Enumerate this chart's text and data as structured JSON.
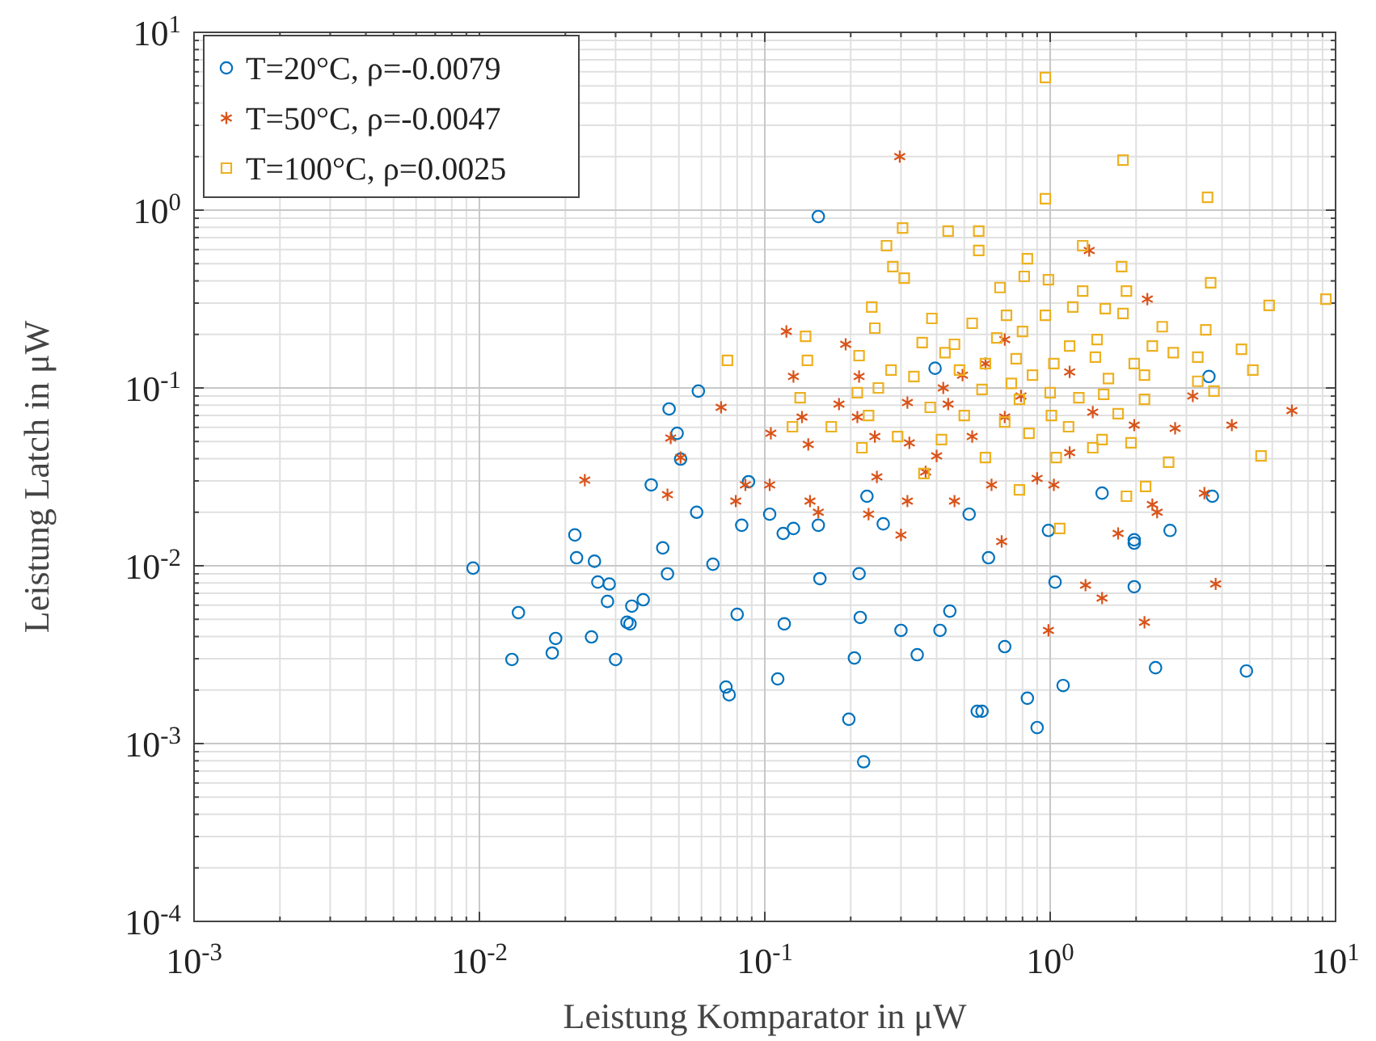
{
  "chart_data": {
    "type": "scatter",
    "xlabel": "Leistung Komparator in μW",
    "ylabel": "Leistung Latch in μW",
    "log": "xy",
    "grid": true,
    "legend": "top left",
    "xlim": [
      0.001,
      10
    ],
    "ylim": [
      0.0001,
      10
    ],
    "xticks": [
      {
        "value": 0.001,
        "label": "10$^{-3}$"
      },
      {
        "value": 0.01,
        "label": "10$^{-2}$"
      },
      {
        "value": 0.1,
        "label": "10$^{-1}$"
      },
      {
        "value": 1,
        "label": "10$^{0}$"
      },
      {
        "value": 10,
        "label": "10$^{1}$"
      }
    ],
    "yticks": [
      {
        "value": 0.0001,
        "label": "10$^{-4}$"
      },
      {
        "value": 0.001,
        "label": "10$^{-3}$"
      },
      {
        "value": 0.01,
        "label": "10$^{-2}$"
      },
      {
        "value": 0.1,
        "label": "10$^{-1}$"
      },
      {
        "value": 1,
        "label": "10$^{0}$"
      },
      {
        "value": 10,
        "label": "10$^{1}$"
      }
    ],
    "series": [
      {
        "name": "T=20°C, ρ=-0.0079",
        "color": "#0072bd",
        "marker": "circle",
        "x": [
          0.0095,
          0.0137,
          0.013,
          0.0185,
          0.0216,
          0.0219,
          0.018,
          0.0247,
          0.026,
          0.0253,
          0.0281,
          0.0329,
          0.03,
          0.0337,
          0.0375,
          0.0439,
          0.04,
          0.0456,
          0.0507,
          0.0577,
          0.0731,
          0.075,
          0.08,
          0.104,
          0.111,
          0.117,
          0.126,
          0.156,
          0.197,
          0.206,
          0.216,
          0.228,
          0.26,
          0.3,
          0.411,
          0.445,
          0.608,
          0.52,
          0.693,
          0.832,
          1.04,
          0.986,
          1.11,
          1.97,
          1.97,
          2.34,
          3.7,
          4.87,
          2.63,
          3.6,
          0.154,
          0.395,
          0.0462,
          0.0493,
          0.0585,
          0.0877,
          0.116,
          0.214,
          0.342,
          1.52,
          0.9,
          0.577,
          0.555,
          0.222,
          1.97,
          0.154,
          0.083,
          0.0285,
          0.0342,
          0.0658
        ],
        "values": [
          0.0097,
          0.00545,
          0.00297,
          0.0039,
          0.0149,
          0.0111,
          0.00323,
          0.00398,
          0.0081,
          0.0106,
          0.0063,
          0.00481,
          0.00297,
          0.00471,
          0.00644,
          0.0126,
          0.0285,
          0.00901,
          0.0398,
          0.02,
          0.00208,
          0.00188,
          0.00533,
          0.0195,
          0.00231,
          0.00471,
          0.0162,
          0.00846,
          0.00137,
          0.00303,
          0.00512,
          0.0246,
          0.0172,
          0.00433,
          0.00433,
          0.00556,
          0.0111,
          0.0195,
          0.00351,
          0.0018,
          0.0081,
          0.0158,
          0.00212,
          0.00762,
          0.014,
          0.00267,
          0.0246,
          0.00256,
          0.0158,
          0.116,
          0.92,
          0.129,
          0.0762,
          0.0556,
          0.096,
          0.0297,
          0.0152,
          0.00903,
          0.00316,
          0.0256,
          0.00123,
          0.00152,
          0.00152,
          0.00079,
          0.0134,
          0.0169,
          0.0169,
          0.0079,
          0.00593,
          0.0102
        ]
      },
      {
        "name": "T=50°C, ρ=-0.0047",
        "color": "#d95319",
        "marker": "cross",
        "x": [
          0.0234,
          0.0456,
          0.0468,
          0.0507,
          0.0703,
          0.0791,
          0.0855,
          0.105,
          0.119,
          0.126,
          0.135,
          0.142,
          0.154,
          0.182,
          0.192,
          0.211,
          0.214,
          0.247,
          0.297,
          0.316,
          0.321,
          0.366,
          0.422,
          0.493,
          0.593,
          0.693,
          0.9,
          1.17,
          1.37,
          1.41,
          1.97,
          2.19,
          2.28,
          2.74,
          3.16,
          3.8,
          4.33,
          7.03,
          3.47,
          2.37,
          1.33,
          0.986,
          1.52,
          2.14,
          0.462,
          0.3,
          0.231,
          0.676,
          0.4,
          0.533,
          0.79,
          1.03,
          1.73,
          0.144,
          0.316,
          0.693,
          0.623,
          0.439,
          1.17,
          0.243,
          0.104
        ],
        "values": [
          0.0303,
          0.0251,
          0.0523,
          0.0406,
          0.0778,
          0.0231,
          0.0285,
          0.0556,
          0.208,
          0.116,
          0.0686,
          0.0481,
          0.02,
          0.0811,
          0.176,
          0.0686,
          0.116,
          0.0316,
          2.0,
          0.0828,
          0.0491,
          0.0337,
          0.1,
          0.118,
          0.137,
          0.0686,
          0.031,
          0.0433,
          0.593,
          0.0731,
          0.0618,
          0.316,
          0.0221,
          0.0593,
          0.0901,
          0.0079,
          0.0618,
          0.0746,
          0.0256,
          0.02,
          0.00778,
          0.00433,
          0.00658,
          0.00481,
          0.0231,
          0.0149,
          0.0195,
          0.0137,
          0.0415,
          0.0533,
          0.0901,
          0.0285,
          0.0152,
          0.0231,
          0.0231,
          0.187,
          0.0285,
          0.0811,
          0.123,
          0.0533,
          0.0285
        ]
      },
      {
        "name": "T=100°C, ρ=0.0025",
        "color": "#edb120",
        "marker": "square",
        "x": [
          0.962,
          1.8,
          0.962,
          3.56,
          0.304,
          0.439,
          0.562,
          0.562,
          0.267,
          0.832,
          1.3,
          1.78,
          0.281,
          0.811,
          0.986,
          0.308,
          0.667,
          1.3,
          1.85,
          3.65,
          9.25,
          5.85,
          0.237,
          1.2,
          1.56,
          0.385,
          0.703,
          0.962,
          1.8,
          2.47,
          3.51,
          0.139,
          0.243,
          0.533,
          0.65,
          0.8,
          0.356,
          0.462,
          1.17,
          1.46,
          2.28,
          2.7,
          4.68,
          0.074,
          0.141,
          0.214,
          0.428,
          0.593,
          0.76,
          1.03,
          1.44,
          1.97,
          3.29,
          5.13,
          0.277,
          0.333,
          0.481,
          0.867,
          1.6,
          2.14,
          3.29,
          0.133,
          0.211,
          0.25,
          0.577,
          0.731,
          1.0,
          1.54,
          3.75,
          0.38,
          0.78,
          1.26,
          2.14,
          0.125,
          0.171,
          0.231,
          0.292,
          0.5,
          0.693,
          1.01,
          1.73,
          0.416,
          0.843,
          1.16,
          1.52,
          1.92,
          0.219,
          1.41,
          2.6,
          5.48,
          0.361,
          0.593,
          0.78,
          1.05,
          1.85,
          2.16,
          1.08
        ],
        "values": [
          5.57,
          1.91,
          1.16,
          1.18,
          0.794,
          0.762,
          0.762,
          0.593,
          0.631,
          0.533,
          0.631,
          0.481,
          0.481,
          0.424,
          0.406,
          0.415,
          0.367,
          0.351,
          0.351,
          0.39,
          0.316,
          0.291,
          0.285,
          0.285,
          0.279,
          0.246,
          0.256,
          0.256,
          0.262,
          0.221,
          0.212,
          0.195,
          0.217,
          0.231,
          0.191,
          0.208,
          0.18,
          0.176,
          0.172,
          0.187,
          0.172,
          0.158,
          0.165,
          0.143,
          0.143,
          0.152,
          0.158,
          0.137,
          0.146,
          0.137,
          0.149,
          0.137,
          0.149,
          0.126,
          0.126,
          0.116,
          0.126,
          0.118,
          0.113,
          0.118,
          0.109,
          0.0881,
          0.094,
          0.1,
          0.098,
          0.106,
          0.094,
          0.092,
          0.096,
          0.0778,
          0.0863,
          0.0881,
          0.0863,
          0.0605,
          0.0605,
          0.07,
          0.0533,
          0.07,
          0.0644,
          0.07,
          0.0716,
          0.0512,
          0.0556,
          0.0605,
          0.0512,
          0.0491,
          0.0461,
          0.0461,
          0.0382,
          0.0415,
          0.033,
          0.0406,
          0.0267,
          0.0406,
          0.0246,
          0.0279,
          0.0162
        ]
      }
    ]
  }
}
